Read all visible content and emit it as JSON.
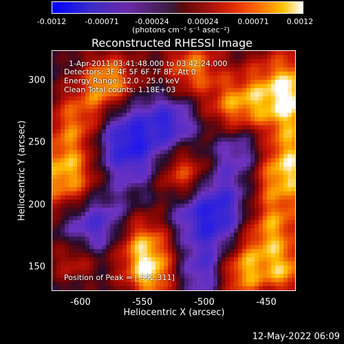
{
  "colorbar": {
    "ticks": [
      "-0.0012",
      "-0.00071",
      "-0.00024",
      "0.00024",
      "0.00071",
      "0.0012"
    ],
    "unit": "(photons cm⁻² s⁻¹ asec⁻²)"
  },
  "plot": {
    "title": "Reconstructed RHESSI Image",
    "annotations": {
      "time": "1-Apr-2011 03:41:48.000 to 03:42:24.000",
      "detectors": "Detectors: 3F 4F 5F 6F 7F 8F, Att 0",
      "energy": "Energy Range: 12.0 - 25.0 keV",
      "method": "Clean     Total counts: 1.18E+03",
      "peak": "Position of Peak = [-592,311]"
    },
    "xlabel": "Heliocentric X (arcsec)",
    "ylabel": "Heliocentric Y (arcsec)",
    "xticks": [
      "-600",
      "-550",
      "-500",
      "-450"
    ],
    "yticks": [
      "300",
      "250",
      "200",
      "150"
    ]
  },
  "footer": {
    "timestamp": "12-May-2022 06:09"
  }
}
